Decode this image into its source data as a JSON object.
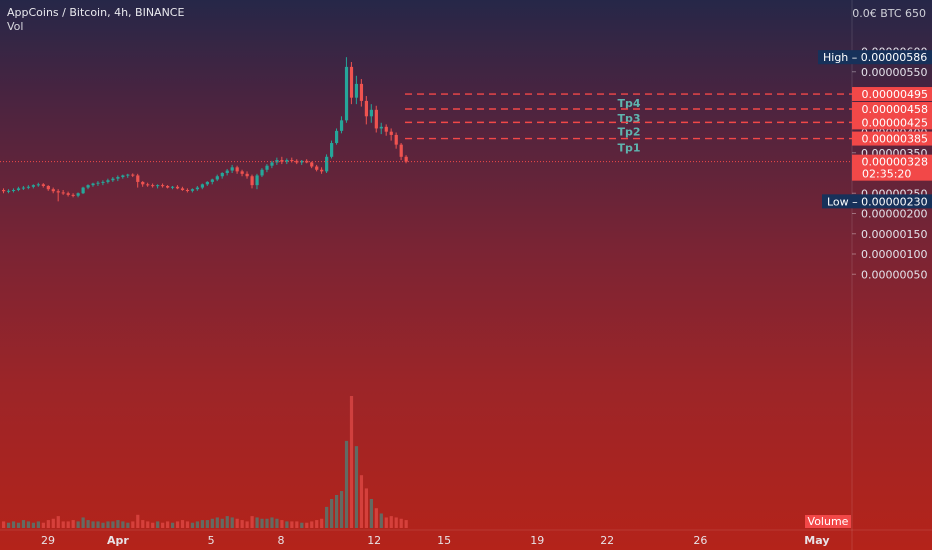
{
  "header": {
    "title": "AppCoins / Bitcoin, 4h, BINANCE",
    "indicator": "Vol",
    "currency": "0.0€ BTC 650"
  },
  "colors": {
    "up": "#26a69a",
    "down": "#ef5350",
    "target_line": "#f24848",
    "high_low_bg": "#17315a",
    "price_bg": "#f24848"
  },
  "chart_data": {
    "type": "candlestick",
    "y_ticks": [
      "0.00000600",
      "0.00000550",
      "0.00000400",
      "0.00000350",
      "0.00000300",
      "0.00000250",
      "0.00000200",
      "0.00000150",
      "0.00000100",
      "0.00000050"
    ],
    "y_tick_values": [
      6e-06,
      5.5e-06,
      4e-06,
      3.5e-06,
      3e-06,
      2.5e-06,
      2e-06,
      1.5e-06,
      1e-06,
      5e-07
    ],
    "ylim": [
      0.0,
      6.5e-06
    ],
    "x_ticks": [
      {
        "label": "29",
        "day": -2,
        "bold": false
      },
      {
        "label": "Apr",
        "day": 1,
        "bold": true
      },
      {
        "label": "5",
        "day": 5,
        "bold": false
      },
      {
        "label": "8",
        "day": 8,
        "bold": false
      },
      {
        "label": "12",
        "day": 12,
        "bold": false
      },
      {
        "label": "15",
        "day": 15,
        "bold": false
      },
      {
        "label": "19",
        "day": 19,
        "bold": false
      },
      {
        "label": "22",
        "day": 22,
        "bold": false
      },
      {
        "label": "26",
        "day": 26,
        "bold": false
      },
      {
        "label": "May",
        "day": 31,
        "bold": true
      }
    ],
    "high": {
      "label": "High",
      "value": "0.00000586",
      "price": 5.86e-06
    },
    "low": {
      "label": "Low",
      "value": "0.00000230",
      "price": 2.3e-06
    },
    "current": {
      "value": "0.00000328",
      "countdown": "02:35:20",
      "price": 3.28e-06
    },
    "targets": [
      {
        "name": "Tp4",
        "value": "0.00000495",
        "price": 4.95e-06
      },
      {
        "name": "Tp3",
        "value": "0.00000458",
        "price": 4.58e-06
      },
      {
        "name": "Tp2",
        "value": "0.00000425",
        "price": 4.25e-06
      },
      {
        "name": "Tp1",
        "value": "0.00000385",
        "price": 3.85e-06
      }
    ],
    "volume_label": "Volume",
    "volume_max": 1.0,
    "candles": [
      [
        2.58,
        2.62,
        2.5,
        2.55,
        0.05
      ],
      [
        2.55,
        2.6,
        2.5,
        2.56,
        0.04
      ],
      [
        2.56,
        2.62,
        2.52,
        2.58,
        0.05
      ],
      [
        2.58,
        2.66,
        2.55,
        2.62,
        0.04
      ],
      [
        2.62,
        2.68,
        2.58,
        2.64,
        0.06
      ],
      [
        2.64,
        2.7,
        2.6,
        2.66,
        0.05
      ],
      [
        2.66,
        2.72,
        2.62,
        2.7,
        0.04
      ],
      [
        2.7,
        2.76,
        2.66,
        2.72,
        0.05
      ],
      [
        2.72,
        2.75,
        2.64,
        2.68,
        0.04
      ],
      [
        2.68,
        2.7,
        2.56,
        2.6,
        0.06
      ],
      [
        2.6,
        2.64,
        2.5,
        2.55,
        0.07
      ],
      [
        2.55,
        2.6,
        2.3,
        2.52,
        0.09
      ],
      [
        2.52,
        2.58,
        2.46,
        2.5,
        0.05
      ],
      [
        2.5,
        2.54,
        2.42,
        2.46,
        0.05
      ],
      [
        2.46,
        2.5,
        2.4,
        2.44,
        0.06
      ],
      [
        2.44,
        2.52,
        2.4,
        2.5,
        0.05
      ],
      [
        2.5,
        2.66,
        2.48,
        2.64,
        0.08
      ],
      [
        2.64,
        2.72,
        2.6,
        2.7,
        0.06
      ],
      [
        2.7,
        2.76,
        2.66,
        2.74,
        0.05
      ],
      [
        2.74,
        2.8,
        2.68,
        2.76,
        0.05
      ],
      [
        2.76,
        2.82,
        2.7,
        2.78,
        0.04
      ],
      [
        2.78,
        2.86,
        2.74,
        2.82,
        0.05
      ],
      [
        2.82,
        2.9,
        2.78,
        2.86,
        0.05
      ],
      [
        2.86,
        2.94,
        2.8,
        2.9,
        0.06
      ],
      [
        2.9,
        2.96,
        2.86,
        2.94,
        0.05
      ],
      [
        2.94,
        2.98,
        2.88,
        2.96,
        0.04
      ],
      [
        2.96,
        2.99,
        2.9,
        2.94,
        0.05
      ],
      [
        2.94,
        2.98,
        2.64,
        2.78,
        0.1
      ],
      [
        2.78,
        2.8,
        2.66,
        2.72,
        0.06
      ],
      [
        2.72,
        2.76,
        2.66,
        2.7,
        0.05
      ],
      [
        2.7,
        2.74,
        2.64,
        2.68,
        0.04
      ],
      [
        2.68,
        2.72,
        2.62,
        2.7,
        0.05
      ],
      [
        2.7,
        2.74,
        2.64,
        2.68,
        0.04
      ],
      [
        2.68,
        2.7,
        2.62,
        2.64,
        0.05
      ],
      [
        2.64,
        2.68,
        2.6,
        2.66,
        0.04
      ],
      [
        2.66,
        2.7,
        2.6,
        2.62,
        0.05
      ],
      [
        2.62,
        2.66,
        2.56,
        2.58,
        0.06
      ],
      [
        2.58,
        2.62,
        2.52,
        2.56,
        0.05
      ],
      [
        2.56,
        2.62,
        2.52,
        2.6,
        0.04
      ],
      [
        2.6,
        2.68,
        2.56,
        2.64,
        0.05
      ],
      [
        2.64,
        2.74,
        2.6,
        2.72,
        0.06
      ],
      [
        2.72,
        2.8,
        2.68,
        2.78,
        0.06
      ],
      [
        2.78,
        2.86,
        2.72,
        2.84,
        0.07
      ],
      [
        2.84,
        2.96,
        2.8,
        2.92,
        0.08
      ],
      [
        2.92,
        3.02,
        2.86,
        3.0,
        0.07
      ],
      [
        3.0,
        3.1,
        2.94,
        3.06,
        0.09
      ],
      [
        3.06,
        3.2,
        3.0,
        3.14,
        0.08
      ],
      [
        3.14,
        3.18,
        2.98,
        3.04,
        0.07
      ],
      [
        3.04,
        3.08,
        2.92,
        2.98,
        0.06
      ],
      [
        2.98,
        3.04,
        2.86,
        2.92,
        0.05
      ],
      [
        2.92,
        2.96,
        2.62,
        2.7,
        0.09
      ],
      [
        2.7,
        2.98,
        2.6,
        2.94,
        0.08
      ],
      [
        2.94,
        3.12,
        2.9,
        3.08,
        0.07
      ],
      [
        3.08,
        3.22,
        3.02,
        3.18,
        0.07
      ],
      [
        3.18,
        3.3,
        3.12,
        3.26,
        0.08
      ],
      [
        3.26,
        3.38,
        3.2,
        3.32,
        0.07
      ],
      [
        3.32,
        3.4,
        3.22,
        3.28,
        0.06
      ],
      [
        3.28,
        3.36,
        3.22,
        3.32,
        0.05
      ],
      [
        3.32,
        3.38,
        3.26,
        3.3,
        0.05
      ],
      [
        3.3,
        3.34,
        3.22,
        3.26,
        0.05
      ],
      [
        3.26,
        3.32,
        3.2,
        3.3,
        0.04
      ],
      [
        3.3,
        3.34,
        3.24,
        3.26,
        0.04
      ],
      [
        3.26,
        3.28,
        3.12,
        3.16,
        0.05
      ],
      [
        3.16,
        3.2,
        3.04,
        3.08,
        0.06
      ],
      [
        3.08,
        3.14,
        2.98,
        3.04,
        0.07
      ],
      [
        3.04,
        3.46,
        3.0,
        3.4,
        0.16
      ],
      [
        3.4,
        3.8,
        3.36,
        3.74,
        0.22
      ],
      [
        3.74,
        4.1,
        3.7,
        4.04,
        0.25
      ],
      [
        4.04,
        4.4,
        3.98,
        4.3,
        0.28
      ],
      [
        4.3,
        5.86,
        4.24,
        5.62,
        0.66
      ],
      [
        5.62,
        5.74,
        4.7,
        4.86,
        1.0
      ],
      [
        4.86,
        5.4,
        4.7,
        5.2,
        0.62
      ],
      [
        5.2,
        5.32,
        4.64,
        4.78,
        0.4
      ],
      [
        4.78,
        4.9,
        4.2,
        4.4,
        0.3
      ],
      [
        4.4,
        4.7,
        4.24,
        4.56,
        0.22
      ],
      [
        4.56,
        4.66,
        4.0,
        4.1,
        0.15
      ],
      [
        4.1,
        4.24,
        3.96,
        4.14,
        0.11
      ],
      [
        4.14,
        4.2,
        3.92,
        4.02,
        0.08
      ],
      [
        4.02,
        4.1,
        3.8,
        3.94,
        0.09
      ],
      [
        3.94,
        4.0,
        3.6,
        3.7,
        0.08
      ],
      [
        3.7,
        3.74,
        3.32,
        3.4,
        0.07
      ],
      [
        3.4,
        3.44,
        3.24,
        3.28,
        0.06
      ]
    ]
  }
}
